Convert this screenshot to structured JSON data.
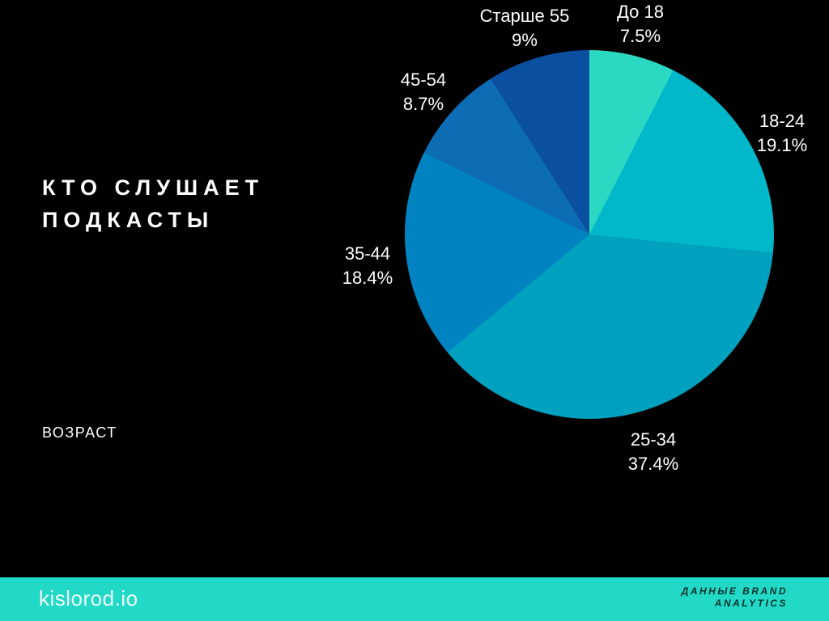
{
  "title": {
    "line1": "КТО СЛУШАЕТ",
    "line2": "ПОДКАСТЫ"
  },
  "axis_label": "ВОЗРАСТ",
  "footer": {
    "brand": "kislorod.io",
    "source_line1": "ДАННЫЕ BRAND",
    "source_line2": "ANALYTICS",
    "background": "#21d9c6",
    "source_text_color": "#0b2f2b"
  },
  "colors": {
    "background": "#000000",
    "text": "#ffffff"
  },
  "chart_data": {
    "type": "pie",
    "title": "КТО СЛУШАЕТ ПОДКАСТЫ",
    "category_label": "ВОЗРАСТ",
    "start_angle_deg": 0,
    "direction": "clockwise",
    "legend_position": "outside-labels",
    "segments": [
      {
        "label": "До 18",
        "value": 7.5,
        "pct_label": "7.5%",
        "color": "#2bd9c2"
      },
      {
        "label": "18-24",
        "value": 19.1,
        "pct_label": "19.1%",
        "color": "#00b8c9"
      },
      {
        "label": "25-34",
        "value": 37.4,
        "pct_label": "37.4%",
        "color": "#00a0bf"
      },
      {
        "label": "35-44",
        "value": 18.4,
        "pct_label": "18.4%",
        "color": "#0083c0"
      },
      {
        "label": "45-54",
        "value": 8.7,
        "pct_label": "8.7%",
        "color": "#0c6cb4"
      },
      {
        "label": "Старше 55",
        "value": 9.0,
        "pct_label": "9%",
        "color": "#0a4fa0"
      }
    ]
  }
}
